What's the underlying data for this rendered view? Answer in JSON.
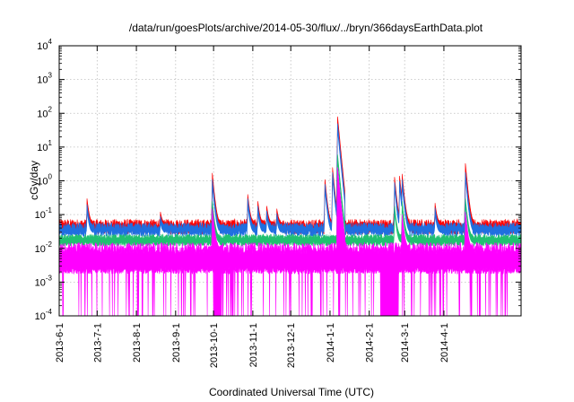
{
  "chart_data": {
    "type": "line",
    "title": "/data/run/goesPlots/archive/2014-05-30/flux/../bryn/366daysEarthData.plot",
    "xlabel": "Coordinated Universal Time (UTC)",
    "ylabel": "cGy/day",
    "yscale": "log",
    "ylim": [
      0.0001,
      10000
    ],
    "xlim": [
      "2013-06-01",
      "2014-06-01"
    ],
    "grid": true,
    "x_ticks": [
      "2013-6-1",
      "2013-7-1",
      "2013-8-1",
      "2013-9-1",
      "2013-10-1",
      "2013-11-1",
      "2013-12-1",
      "2014-1-1",
      "2014-2-1",
      "2014-3-1",
      "2014-4-1"
    ],
    "y_ticks": [
      {
        "value": 0.0001,
        "base": "10",
        "exp": "-4"
      },
      {
        "value": 0.001,
        "base": "10",
        "exp": "-3"
      },
      {
        "value": 0.01,
        "base": "10",
        "exp": "-2"
      },
      {
        "value": 0.1,
        "base": "10",
        "exp": "-1"
      },
      {
        "value": 1,
        "base": "10",
        "exp": "0"
      },
      {
        "value": 10,
        "base": "10",
        "exp": "1"
      },
      {
        "value": 100,
        "base": "10",
        "exp": "2"
      },
      {
        "value": 1000,
        "base": "10",
        "exp": "3"
      },
      {
        "value": 10000,
        "base": "10",
        "exp": "4"
      }
    ],
    "series": [
      {
        "color": "#ff0000",
        "baseline": 0.055,
        "noise": 0.25,
        "peaks": [
          [
            "2013-06-23",
            0.3
          ],
          [
            "2013-08-20",
            0.12
          ],
          [
            "2013-09-30",
            1.7
          ],
          [
            "2013-10-28",
            0.4
          ],
          [
            "2013-11-05",
            0.25
          ],
          [
            "2013-11-12",
            0.18
          ],
          [
            "2013-11-20",
            0.15
          ],
          [
            "2013-12-28",
            1.1
          ],
          [
            "2014-01-07",
            80
          ],
          [
            "2014-01-03",
            2.5
          ],
          [
            "2014-02-21",
            1.3
          ],
          [
            "2014-02-27",
            1.6
          ],
          [
            "2014-02-25",
            1.4
          ],
          [
            "2014-03-25",
            0.22
          ],
          [
            "2014-04-18",
            3.3
          ]
        ]
      },
      {
        "color": "#1f6fe0",
        "baseline": 0.045,
        "noise": 0.22,
        "peaks": [
          [
            "2013-06-23",
            0.2
          ],
          [
            "2013-08-20",
            0.09
          ],
          [
            "2013-09-30",
            1.1
          ],
          [
            "2013-10-28",
            0.3
          ],
          [
            "2013-11-05",
            0.18
          ],
          [
            "2013-11-12",
            0.13
          ],
          [
            "2013-11-20",
            0.11
          ],
          [
            "2013-12-28",
            0.8
          ],
          [
            "2014-01-07",
            50
          ],
          [
            "2014-01-03",
            1.8
          ],
          [
            "2014-02-21",
            0.9
          ],
          [
            "2014-02-27",
            1.1
          ],
          [
            "2014-02-25",
            1.0
          ],
          [
            "2014-03-25",
            0.16
          ],
          [
            "2014-04-18",
            1.8
          ]
        ]
      },
      {
        "color": "#20c070",
        "baseline": 0.022,
        "noise": 0.15,
        "peaks": [
          [
            "2013-09-30",
            0.25
          ],
          [
            "2014-01-07",
            6
          ],
          [
            "2014-02-21",
            0.18
          ],
          [
            "2014-02-27",
            0.25
          ],
          [
            "2014-04-18",
            0.3
          ]
        ]
      },
      {
        "color": "#ff00ff",
        "baseline": 0.01,
        "noise": 0.35,
        "floor": 0.0022,
        "dropout_to": 0.0001,
        "dropout_spans": [
          [
            "2013-10-01",
            "2013-10-07"
          ],
          [
            "2014-02-10",
            "2014-02-24"
          ]
        ],
        "peaks": [
          [
            "2013-09-30",
            0.15
          ],
          [
            "2014-01-07",
            2.5
          ],
          [
            "2014-02-27",
            0.1
          ],
          [
            "2014-04-18",
            0.12
          ]
        ]
      }
    ]
  }
}
